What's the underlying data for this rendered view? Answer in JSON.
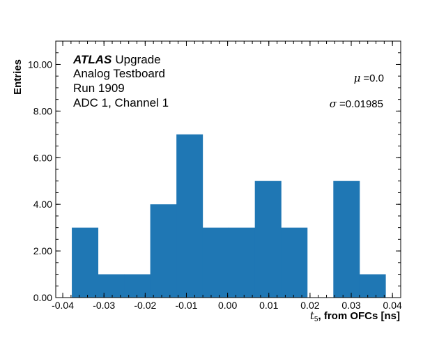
{
  "chart_data": {
    "type": "bar",
    "subtype": "histogram",
    "bin_edges": [
      -0.0378,
      -0.03146,
      -0.02511,
      -0.01877,
      -0.01242,
      -0.00608,
      0.00027,
      0.00661,
      0.01296,
      0.0193,
      0.02565,
      0.03199,
      0.0383
    ],
    "values": [
      3,
      1,
      1,
      4,
      7,
      3,
      3,
      5,
      3,
      0,
      5,
      1
    ],
    "color": "#1f77b4",
    "xlabel_italic": "t",
    "xlabel_sub": "5",
    "xlabel_rest": ", from OFCs [ns]",
    "ylabel": "Entries",
    "xlim": [
      -0.0417,
      0.042
    ],
    "ylim": [
      0,
      11
    ],
    "xticks": [
      "-0.04",
      "-0.03",
      "-0.02",
      "-0.01",
      "0.00",
      "0.01",
      "0.02",
      "0.03",
      "0.04"
    ],
    "xtick_values": [
      -0.04,
      -0.03,
      -0.02,
      -0.01,
      0.0,
      0.01,
      0.02,
      0.03,
      0.04
    ],
    "yticks": [
      "0.00",
      "2.00",
      "4.00",
      "6.00",
      "8.00",
      "10.00"
    ],
    "ytick_values": [
      0,
      2,
      4,
      6,
      8,
      10
    ],
    "grid": false,
    "annotations": {
      "atlas": "ATLAS",
      "upgrade": "Upgrade",
      "line2": "Analog Testboard",
      "line3": "Run 1909",
      "line4": "ADC 1, Channel 1",
      "mu_symbol": "μ",
      "mu_value": "=0.0",
      "sigma_symbol": "σ",
      "sigma_value": "=0.01985"
    }
  }
}
